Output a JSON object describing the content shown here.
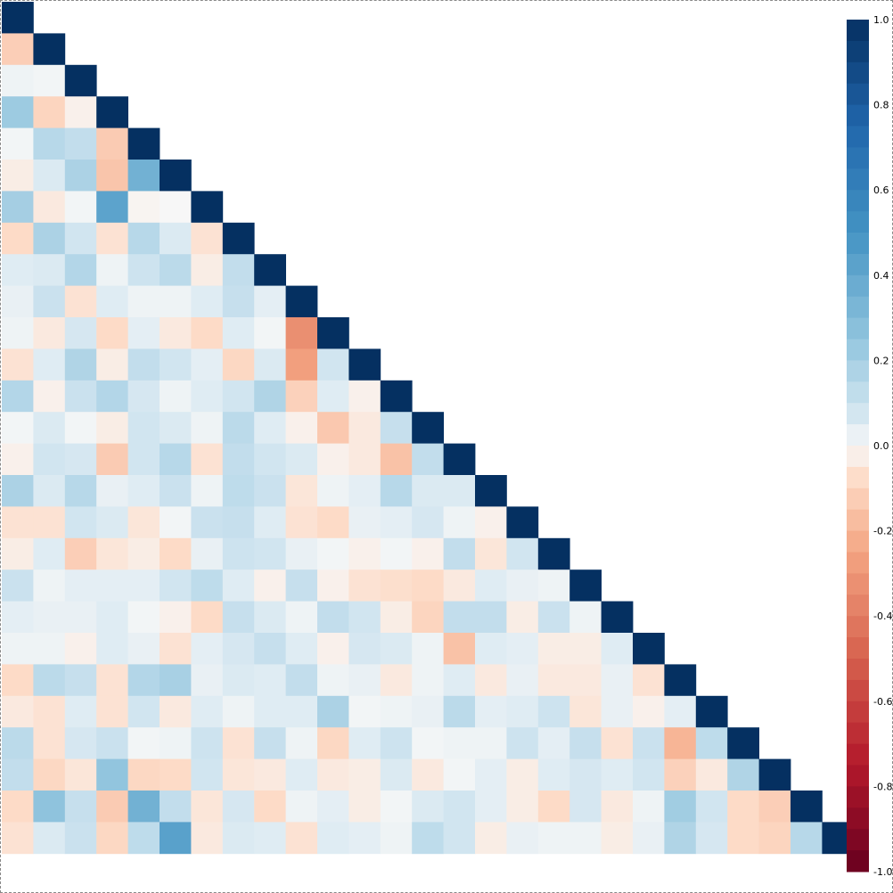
{
  "chart_data": {
    "type": "heatmap",
    "shape": "lower-triangle",
    "title": "",
    "xlabel": "",
    "ylabel": "",
    "size": 27,
    "value_range": [
      -1.0,
      1.0
    ],
    "colorbar": {
      "ticks": [
        "1.0",
        "0.8",
        "0.6",
        "0.4",
        "0.2",
        "0.0",
        "-0.2",
        "-0.4",
        "-0.6",
        "-0.8",
        "-1.0"
      ],
      "tick_values": [
        1.0,
        0.8,
        0.6,
        0.4,
        0.2,
        0.0,
        -0.2,
        -0.4,
        -0.6,
        -0.8,
        -1.0
      ],
      "placement": "right",
      "steps": 40
    },
    "colors": {
      "negative_end": "#67001f",
      "neutral": "#f7f7f7",
      "positive_end": "#053061"
    },
    "rows": [
      [
        1.0
      ],
      [
        -0.12,
        1.0
      ],
      [
        0.02,
        0.01,
        1.0
      ],
      [
        0.22,
        -0.1,
        -0.02,
        1.0
      ],
      [
        0.01,
        0.15,
        0.12,
        -0.13,
        1.0
      ],
      [
        -0.03,
        0.06,
        0.18,
        -0.15,
        0.35,
        1.0
      ],
      [
        0.2,
        -0.04,
        0.01,
        0.42,
        -0.01,
        0.0,
        1.0
      ],
      [
        -0.08,
        0.18,
        0.08,
        -0.06,
        0.15,
        0.06,
        -0.06,
        1.0
      ],
      [
        0.05,
        0.06,
        0.16,
        0.02,
        0.09,
        0.14,
        -0.03,
        0.12,
        1.0
      ],
      [
        0.03,
        0.1,
        -0.06,
        0.05,
        0.02,
        0.02,
        0.05,
        0.11,
        0.04,
        1.0
      ],
      [
        0.02,
        -0.04,
        0.07,
        -0.08,
        0.04,
        -0.04,
        -0.08,
        0.05,
        0.01,
        -0.33,
        1.0
      ],
      [
        -0.06,
        0.05,
        0.17,
        -0.03,
        0.12,
        0.08,
        0.04,
        -0.09,
        0.06,
        -0.27,
        0.08,
        1.0
      ],
      [
        0.16,
        -0.02,
        0.1,
        0.16,
        0.07,
        0.02,
        0.05,
        0.08,
        0.17,
        -0.11,
        0.05,
        -0.02,
        1.0
      ],
      [
        0.01,
        0.06,
        0.01,
        -0.03,
        0.08,
        0.06,
        0.02,
        0.14,
        0.05,
        -0.02,
        -0.14,
        -0.04,
        0.11,
        1.0
      ],
      [
        -0.02,
        0.08,
        0.07,
        -0.13,
        0.08,
        0.15,
        -0.06,
        0.12,
        0.08,
        0.06,
        -0.02,
        -0.04,
        -0.16,
        0.12,
        1.0
      ],
      [
        0.18,
        0.06,
        0.15,
        0.03,
        0.05,
        0.1,
        0.02,
        0.13,
        0.1,
        -0.05,
        0.02,
        0.04,
        0.15,
        0.06,
        0.06,
        1.0
      ],
      [
        -0.06,
        -0.06,
        0.08,
        0.06,
        -0.05,
        0.01,
        0.1,
        0.11,
        0.05,
        -0.06,
        -0.08,
        0.03,
        0.04,
        0.07,
        0.02,
        -0.02,
        1.0
      ],
      [
        -0.03,
        0.05,
        -0.12,
        -0.05,
        -0.03,
        -0.08,
        0.03,
        0.09,
        0.08,
        0.03,
        0.01,
        -0.02,
        0.01,
        -0.02,
        0.12,
        -0.05,
        0.08,
        1.0
      ],
      [
        0.1,
        0.02,
        0.04,
        0.04,
        0.04,
        0.08,
        0.13,
        0.05,
        -0.02,
        0.11,
        -0.02,
        -0.06,
        -0.07,
        -0.08,
        -0.04,
        0.05,
        0.03,
        0.02,
        1.0
      ],
      [
        0.04,
        0.03,
        0.03,
        0.05,
        0.01,
        -0.02,
        -0.08,
        0.11,
        0.06,
        0.02,
        0.12,
        0.08,
        -0.03,
        -0.1,
        0.12,
        0.12,
        -0.03,
        0.1,
        0.02,
        1.0
      ],
      [
        0.02,
        0.02,
        -0.02,
        0.05,
        0.03,
        -0.06,
        0.04,
        0.07,
        0.11,
        0.05,
        -0.02,
        0.07,
        0.06,
        0.02,
        -0.16,
        0.05,
        0.04,
        -0.03,
        -0.03,
        0.05,
        1.0
      ],
      [
        -0.08,
        0.14,
        0.11,
        -0.06,
        0.16,
        0.19,
        0.03,
        0.06,
        0.05,
        0.12,
        0.02,
        0.03,
        -0.04,
        0.02,
        0.05,
        -0.04,
        0.03,
        -0.04,
        -0.04,
        0.03,
        -0.06,
        1.0
      ],
      [
        -0.04,
        -0.06,
        0.05,
        -0.06,
        0.08,
        -0.04,
        0.05,
        0.02,
        0.05,
        0.05,
        0.18,
        0.01,
        0.02,
        0.03,
        0.14,
        0.04,
        0.05,
        0.09,
        -0.05,
        0.03,
        -0.02,
        0.04,
        1.0
      ],
      [
        0.14,
        -0.06,
        0.07,
        0.1,
        0.01,
        0.02,
        0.09,
        -0.06,
        0.11,
        0.02,
        -0.09,
        0.05,
        0.09,
        0.01,
        0.02,
        0.02,
        0.09,
        0.04,
        0.11,
        -0.06,
        0.1,
        -0.2,
        0.13,
        1.0
      ],
      [
        0.12,
        -0.09,
        -0.05,
        0.25,
        -0.09,
        -0.08,
        0.08,
        -0.05,
        -0.04,
        0.05,
        -0.04,
        -0.03,
        0.06,
        -0.04,
        0.01,
        0.04,
        -0.03,
        0.05,
        0.07,
        0.05,
        0.08,
        -0.11,
        -0.04,
        0.17,
        1.0
      ],
      [
        -0.08,
        0.26,
        0.11,
        -0.13,
        0.35,
        0.12,
        -0.05,
        0.07,
        -0.08,
        0.02,
        0.04,
        -0.03,
        0.01,
        0.06,
        0.08,
        0.04,
        -0.03,
        -0.08,
        0.07,
        -0.04,
        0.02,
        0.21,
        0.08,
        -0.08,
        -0.12,
        1.0
      ],
      [
        -0.06,
        0.06,
        0.1,
        -0.09,
        0.13,
        0.43,
        -0.04,
        0.06,
        0.05,
        -0.06,
        0.05,
        0.04,
        0.02,
        0.13,
        0.08,
        -0.03,
        0.03,
        0.02,
        0.02,
        -0.03,
        0.03,
        0.17,
        0.07,
        -0.08,
        -0.1,
        0.15,
        1.0
      ]
    ]
  }
}
